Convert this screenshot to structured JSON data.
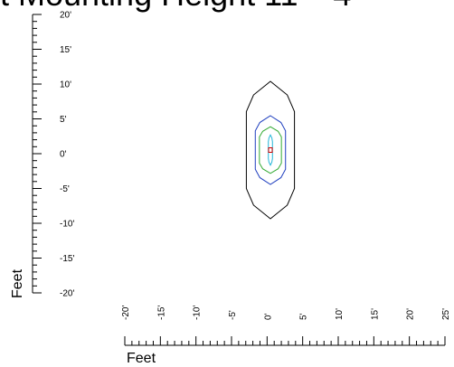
{
  "title_fragment": "t    Mounting Height 11' - 4",
  "y_axis": {
    "label": "Feet",
    "ticks": [
      "20'",
      "15'",
      "10'",
      "5'",
      "0'",
      "-5'",
      "-10'",
      "-15'",
      "-20'"
    ],
    "range": [
      -20,
      20
    ],
    "minor_step": 1
  },
  "x_axis": {
    "label": "Feet",
    "ticks": [
      "-20'",
      "-15'",
      "-10'",
      "-5'",
      "0'",
      "5'",
      "10'",
      "15'",
      "20'",
      "25'"
    ],
    "range": [
      -20,
      25
    ],
    "minor_step": 1
  },
  "contours": [
    {
      "name": "outer",
      "color": "#000000",
      "half_width_ft": 3.5,
      "top_ft": 10,
      "bottom_ft": -10
    },
    {
      "name": "mid",
      "color": "#1f3fbf",
      "half_width_ft": 2.2,
      "top_ft": 5,
      "bottom_ft": -5
    },
    {
      "name": "inner",
      "color": "#33aa33",
      "half_width_ft": 1.6,
      "top_ft": 3.4,
      "bottom_ft": -3.4
    },
    {
      "name": "core",
      "color": "#22b5d8",
      "half_width_ft": 0.3,
      "top_ft": 2.2,
      "bottom_ft": -2.2
    }
  ],
  "fixture": {
    "x_ft": 0,
    "y_ft": 0,
    "color": "#cc0000"
  }
}
